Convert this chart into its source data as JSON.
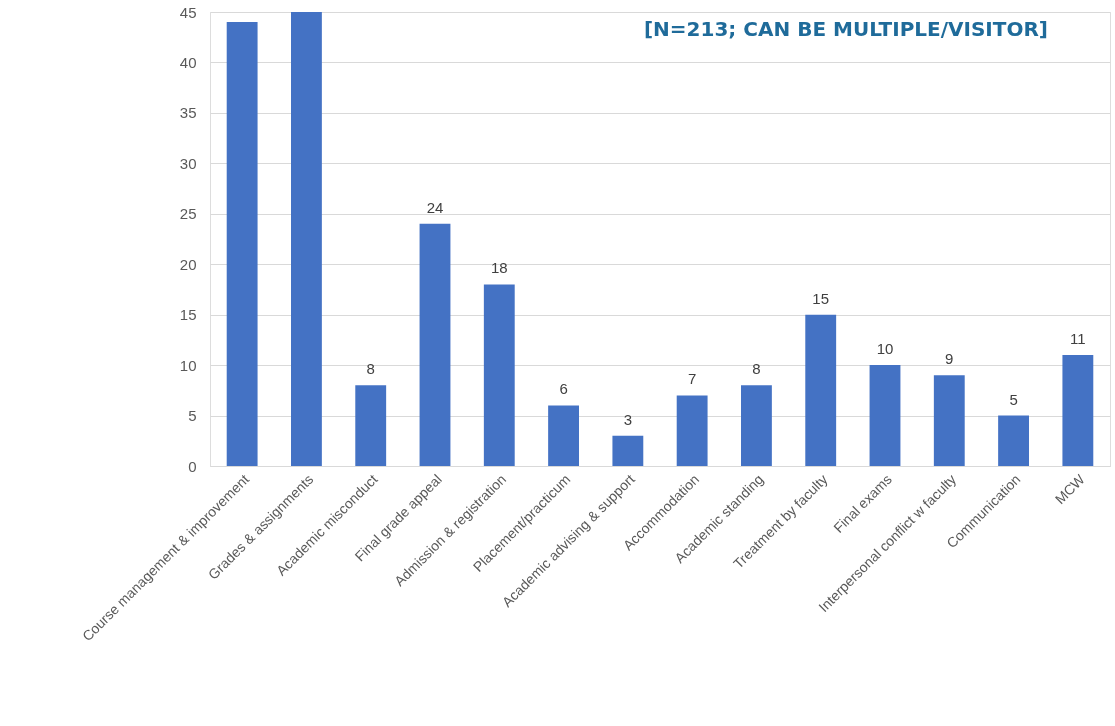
{
  "chart_data": {
    "type": "bar",
    "annotations": [
      "[N=213; CAN BE MULTIPLE/VISITOR]"
    ],
    "categories": [
      "Course management & improvement",
      "Grades & assignments",
      "Academic misconduct",
      "Final grade appeal",
      "Admission & registration",
      "Placement/practicum",
      "Academic advising & support",
      "Accommodation",
      "Academic standing",
      "Treatment by faculty",
      "Final exams",
      "Interpersonal conflict w faculty",
      "Communication",
      "MCW"
    ],
    "values": [
      44,
      45,
      8,
      24,
      18,
      6,
      3,
      7,
      8,
      15,
      10,
      9,
      5,
      11
    ],
    "value_labels": [
      null,
      null,
      "8",
      "24",
      "18",
      "6",
      "3",
      "7",
      "8",
      "15",
      "10",
      "9",
      "5",
      "11"
    ],
    "color": "#4472c4",
    "ylim": [
      0,
      45
    ],
    "yticks": [
      0,
      5,
      10,
      15,
      20,
      25,
      30,
      35,
      40,
      45
    ],
    "grid": "y"
  }
}
